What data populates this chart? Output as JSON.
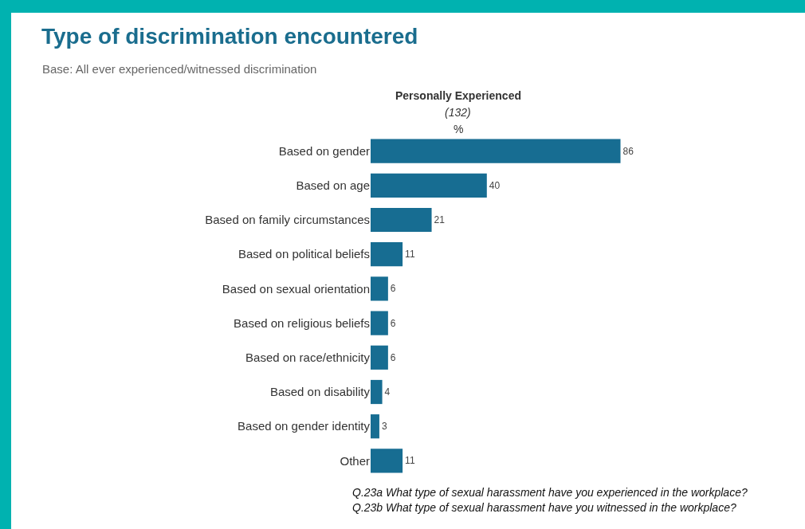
{
  "chart_data": {
    "type": "bar",
    "orientation": "horizontal",
    "title": "Type of discrimination encountered",
    "subtitle": "Base: All ever experienced/witnessed discrimination",
    "categories": [
      "Based on gender",
      "Based on age",
      "Based on family circumstances",
      "Based on political beliefs",
      "Based on sexual orientation",
      "Based on religious beliefs",
      "Based on race/ethnicity",
      "Based on disability",
      "Based on gender identity",
      "Other"
    ],
    "series": [
      {
        "name": "Personally Experienced",
        "color": "#176d92",
        "values": [
          86,
          40,
          21,
          11,
          6,
          6,
          6,
          4,
          3,
          11
        ]
      }
    ],
    "data_labels": true,
    "legend": false,
    "grid": false,
    "annotations": [
      "(132)",
      "%",
      "Q.23a What type of sexual harassment have you experienced in the workplace?",
      "Q.23b What type of sexual harassment have you witnessed in the workplace?"
    ]
  }
}
